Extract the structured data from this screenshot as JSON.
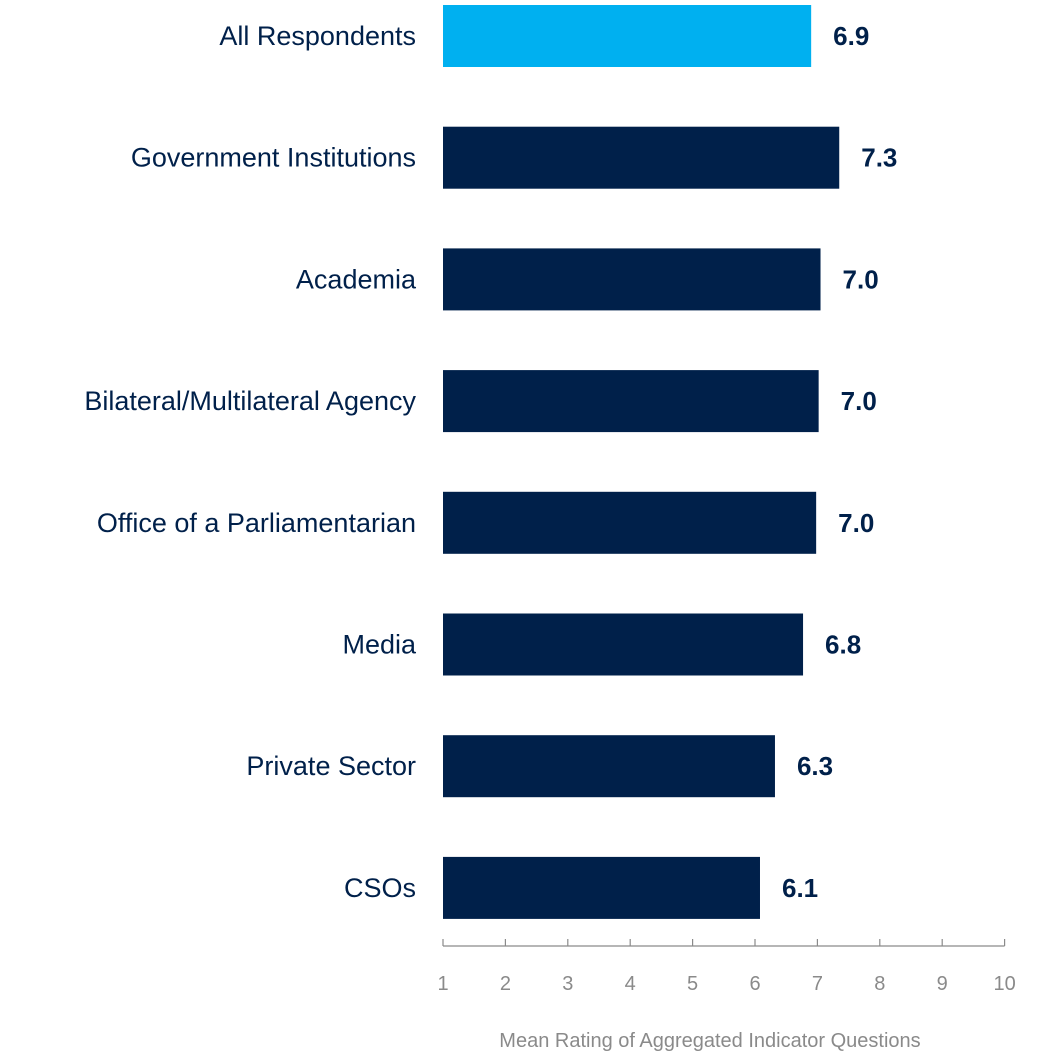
{
  "chart_data": {
    "type": "bar",
    "orientation": "horizontal",
    "categories": [
      "All Respondents",
      "Government Institutions",
      "Academia",
      "Bilateral/Multilateral Agency",
      "Office of a Parliamentarian",
      "Media",
      "Private Sector",
      "CSOs"
    ],
    "values": [
      6.9,
      7.35,
      7.05,
      7.02,
      6.98,
      6.77,
      6.32,
      6.08
    ],
    "value_labels": [
      "6.9",
      "7.3",
      "7.0",
      "7.0",
      "7.0",
      "6.8",
      "6.3",
      "6.1"
    ],
    "highlight_index": 0,
    "colors": {
      "highlight": "#00b0f0",
      "bar": "#00204a",
      "label": "#00204a",
      "axis": "#8a8a8a"
    },
    "xlim": [
      1,
      10
    ],
    "xticks": [
      "1",
      "2",
      "3",
      "4",
      "5",
      "6",
      "7",
      "8",
      "9",
      "10"
    ],
    "xlabel": "Mean Rating of Aggregated Indicator Questions",
    "ylabel": "",
    "title": "",
    "grid": false,
    "legend": "none"
  }
}
